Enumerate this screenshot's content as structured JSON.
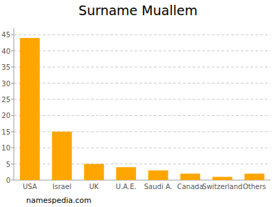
{
  "chart_data": {
    "type": "bar",
    "title": "Surname Muallem",
    "categories": [
      "USA",
      "Israel",
      "UK",
      "U.A.E.",
      "Saudi A.",
      "Canada",
      "Switzerland",
      "Others"
    ],
    "values": [
      44,
      15,
      5,
      4,
      3,
      2,
      1,
      2
    ],
    "color": "#ffa500",
    "ylim": [
      0,
      47
    ],
    "yticks": [
      0,
      5,
      10,
      15,
      20,
      25,
      30,
      35,
      40,
      45
    ],
    "grid": true,
    "source": "namespedia.com"
  }
}
